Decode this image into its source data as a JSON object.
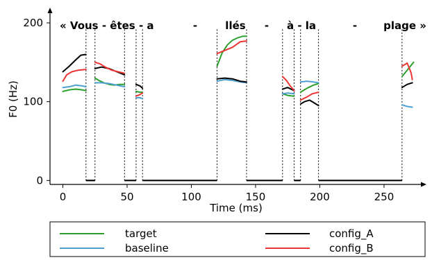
{
  "chart_data": {
    "type": "line",
    "xlabel": "Time (ms)",
    "ylabel": "F0 (Hz)",
    "xlim": [
      -10,
      283
    ],
    "ylim": [
      -5,
      222
    ],
    "x_ticks": [
      0,
      50,
      100,
      150,
      200,
      250
    ],
    "y_ticks": [
      0,
      100,
      200
    ],
    "sentence_words": [
      "« Vous - êtes - a",
      "-",
      "llés",
      "-",
      "à - la",
      "-",
      "plage »"
    ],
    "segment_boundaries": [
      18,
      25,
      48,
      57,
      62,
      120,
      143,
      171,
      180,
      185,
      199,
      264
    ],
    "baseline_segments": [
      [
        18,
        25
      ],
      [
        48,
        57
      ],
      [
        62,
        120
      ],
      [
        143,
        171
      ],
      [
        180,
        185
      ],
      [
        199,
        264
      ]
    ],
    "series": [
      {
        "name": "target",
        "color": "#2ca02c",
        "segments": [
          [
            [
              0,
              113
            ],
            [
              5,
              115
            ],
            [
              10,
              116
            ],
            [
              15,
              115
            ],
            [
              18,
              114
            ]
          ],
          [
            [
              25,
              130
            ],
            [
              28,
              127
            ],
            [
              32,
              124
            ],
            [
              36,
              122
            ],
            [
              40,
              121
            ],
            [
              44,
              122
            ],
            [
              48,
              122
            ]
          ],
          [
            [
              57,
              113
            ],
            [
              60,
              112
            ],
            [
              62,
              112
            ]
          ],
          [
            [
              120,
              145
            ],
            [
              124,
              162
            ],
            [
              128,
              172
            ],
            [
              132,
              178
            ],
            [
              136,
              181
            ],
            [
              140,
              183
            ],
            [
              143,
              183
            ]
          ],
          [
            [
              171,
              110
            ],
            [
              175,
              108
            ],
            [
              180,
              107
            ]
          ],
          [
            [
              185,
              112
            ],
            [
              190,
              117
            ],
            [
              195,
              121
            ],
            [
              199,
              123
            ]
          ],
          [
            [
              264,
              132
            ],
            [
              268,
              140
            ],
            [
              271,
              146
            ],
            [
              273,
              150
            ]
          ]
        ]
      },
      {
        "name": "baseline",
        "color": "#4c9fcf",
        "segments": [
          [
            [
              0,
              118
            ],
            [
              5,
              119
            ],
            [
              10,
              121
            ],
            [
              15,
              120
            ],
            [
              18,
              119
            ]
          ],
          [
            [
              25,
              124
            ],
            [
              30,
              124
            ],
            [
              36,
              123
            ],
            [
              42,
              121
            ],
            [
              48,
              119
            ]
          ],
          [
            [
              57,
              105
            ],
            [
              60,
              105
            ],
            [
              62,
              104
            ]
          ],
          [
            [
              120,
              126
            ],
            [
              126,
              128
            ],
            [
              132,
              127
            ],
            [
              138,
              125
            ],
            [
              143,
              124
            ]
          ],
          [
            [
              171,
              110
            ],
            [
              175,
              111
            ],
            [
              180,
              110
            ]
          ],
          [
            [
              185,
              125
            ],
            [
              190,
              126
            ],
            [
              195,
              125
            ],
            [
              199,
              124
            ]
          ],
          [
            [
              264,
              96
            ],
            [
              268,
              94
            ],
            [
              272,
              93
            ]
          ]
        ]
      },
      {
        "name": "config_A",
        "color": "#000000",
        "segments": [
          [
            [
              0,
              138
            ],
            [
              5,
              145
            ],
            [
              10,
              153
            ],
            [
              14,
              159
            ],
            [
              18,
              160
            ]
          ],
          [
            [
              25,
              142
            ],
            [
              30,
              144
            ],
            [
              36,
              142
            ],
            [
              42,
              138
            ],
            [
              48,
              134
            ]
          ],
          [
            [
              57,
              122
            ],
            [
              60,
              120
            ],
            [
              62,
              117
            ]
          ],
          [
            [
              120,
              129
            ],
            [
              126,
              130
            ],
            [
              132,
              129
            ],
            [
              138,
              126
            ],
            [
              143,
              125
            ]
          ],
          [
            [
              171,
              116
            ],
            [
              175,
              118
            ],
            [
              180,
              114
            ]
          ],
          [
            [
              185,
              97
            ],
            [
              188,
              100
            ],
            [
              192,
              102
            ],
            [
              196,
              98
            ],
            [
              199,
              95
            ]
          ],
          [
            [
              264,
              118
            ],
            [
              268,
              122
            ],
            [
              272,
              124
            ]
          ]
        ]
      },
      {
        "name": "config_B",
        "color": "#ee3333",
        "segments": [
          [
            [
              0,
              126
            ],
            [
              3,
              134
            ],
            [
              7,
              138
            ],
            [
              12,
              140
            ],
            [
              18,
              141
            ]
          ],
          [
            [
              25,
              150
            ],
            [
              29,
              148
            ],
            [
              33,
              144
            ],
            [
              38,
              140
            ],
            [
              43,
              138
            ],
            [
              48,
              136
            ]
          ],
          [
            [
              57,
              107
            ],
            [
              60,
              109
            ],
            [
              62,
              111
            ]
          ],
          [
            [
              120,
              161
            ],
            [
              126,
              165
            ],
            [
              132,
              169
            ],
            [
              138,
              176
            ],
            [
              143,
              177
            ]
          ],
          [
            [
              171,
              132
            ],
            [
              174,
              127
            ],
            [
              177,
              120
            ],
            [
              180,
              114
            ]
          ],
          [
            [
              185,
              102
            ],
            [
              190,
              106
            ],
            [
              194,
              110
            ],
            [
              199,
              112
            ]
          ],
          [
            [
              264,
              145
            ],
            [
              268,
              149
            ],
            [
              271,
              137
            ],
            [
              272,
              128
            ]
          ]
        ]
      }
    ],
    "legend": {
      "placement": "bottom",
      "entries": [
        {
          "label": "target",
          "color": "#2ca02c"
        },
        {
          "label": "config_A",
          "color": "#000000"
        },
        {
          "label": "baseline",
          "color": "#4c9fcf"
        },
        {
          "label": "config_B",
          "color": "#ee3333"
        }
      ]
    },
    "grid": false
  }
}
